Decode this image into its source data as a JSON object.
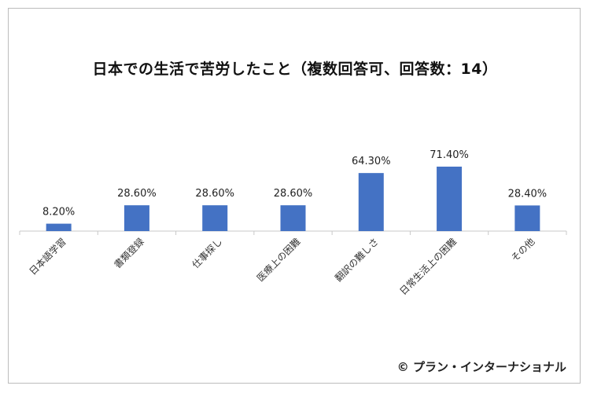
{
  "chart_data": {
    "type": "bar",
    "title": "日本での生活で苦労したこと（複数回答可、回答数：14）",
    "xlabel": "",
    "ylabel": "",
    "categories": [
      "日本語学習",
      "書類登録",
      "仕事探し",
      "医療上の困難",
      "翻訳の難しさ",
      "日常生活上の困難",
      "その他"
    ],
    "values": [
      8.2,
      28.6,
      28.6,
      28.6,
      64.3,
      71.4,
      28.4
    ],
    "data_labels": [
      "8.20%",
      "28.60%",
      "28.60%",
      "28.60%",
      "64.30%",
      "71.40%",
      "28.40%"
    ],
    "ylim": [
      0,
      100
    ],
    "grid": false,
    "legend": "none",
    "bar_color": "#4472C4"
  },
  "footer": {
    "credit": "© プラン・インターナショナル"
  }
}
